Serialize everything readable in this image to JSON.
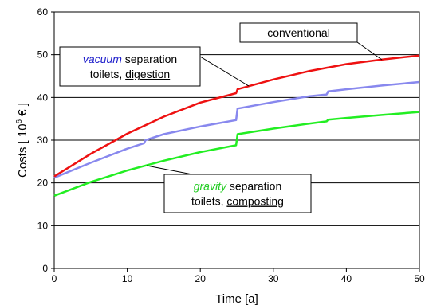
{
  "chart_data": {
    "type": "line",
    "xlabel": "Time [a]",
    "ylabel": {
      "pre": "Costs [ 10",
      "sup": "6",
      "post": " € ]"
    },
    "xlim": [
      0,
      50
    ],
    "ylim": [
      0,
      60
    ],
    "xticks": [
      0,
      10,
      20,
      30,
      40,
      50
    ],
    "yticks": [
      0,
      10,
      20,
      30,
      40,
      50,
      60
    ],
    "grid": "horizontal",
    "series": [
      {
        "name": "conventional",
        "color": "#ee1111",
        "x": [
          0,
          5,
          10,
          15,
          20,
          24.9,
          25.1,
          30,
          35,
          40,
          45,
          50
        ],
        "y": [
          21.5,
          26.8,
          31.5,
          35.5,
          38.8,
          41.0,
          41.9,
          44.2,
          46.2,
          47.8,
          48.9,
          49.8
        ]
      },
      {
        "name": "vacuum separation toilets, digestion",
        "color": "#8888ee",
        "x": [
          0,
          5,
          10,
          12.3,
          12.5,
          15,
          20,
          24.9,
          25.1,
          30,
          35,
          37.3,
          37.5,
          40,
          45,
          50
        ],
        "y": [
          21.2,
          24.7,
          28.0,
          29.3,
          30.0,
          31.4,
          33.2,
          34.7,
          37.4,
          38.9,
          40.3,
          40.7,
          41.4,
          41.9,
          42.8,
          43.6
        ]
      },
      {
        "name": "gravity separation toilets, composting",
        "color": "#22ee22",
        "x": [
          0,
          5,
          10,
          15,
          20,
          24.9,
          25.1,
          30,
          35,
          37.3,
          37.5,
          40,
          45,
          50
        ],
        "y": [
          17.0,
          20.2,
          22.9,
          25.2,
          27.2,
          28.8,
          31.4,
          32.7,
          33.9,
          34.4,
          34.8,
          35.2,
          35.9,
          36.6
        ]
      }
    ],
    "annotations": [
      {
        "id": "conventional",
        "lines": [
          [
            {
              "t": "conventional"
            }
          ]
        ]
      },
      {
        "id": "vacuum",
        "lines": [
          [
            {
              "t": "vacuum",
              "style": "italic-blue"
            },
            {
              "t": " separation"
            }
          ],
          [
            {
              "t": "toilets, "
            },
            {
              "t": "digestion",
              "style": "underline"
            }
          ]
        ]
      },
      {
        "id": "gravity",
        "lines": [
          [
            {
              "t": "gravity",
              "style": "italic-green"
            },
            {
              "t": " separation"
            }
          ],
          [
            {
              "t": "toilets, "
            },
            {
              "t": "composting",
              "style": "underline"
            }
          ]
        ]
      }
    ]
  }
}
